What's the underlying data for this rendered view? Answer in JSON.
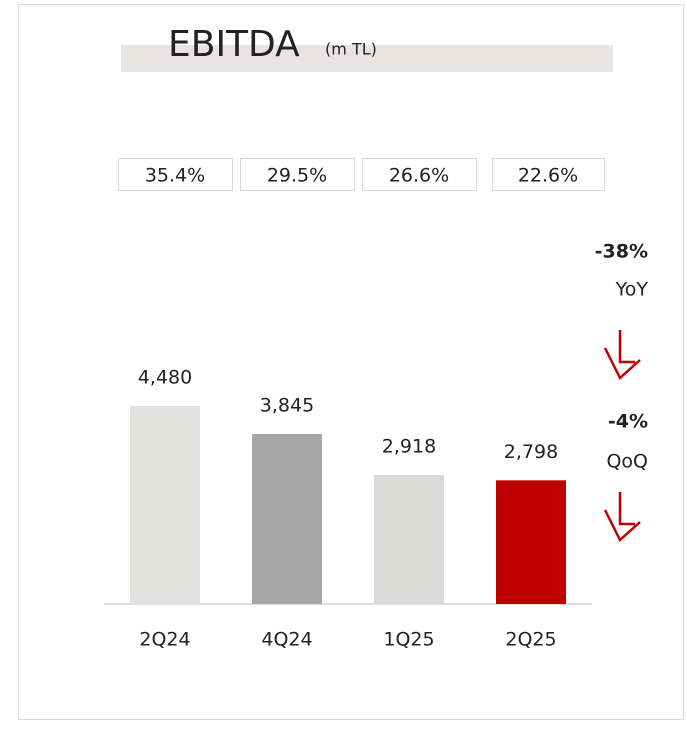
{
  "chart_data": {
    "type": "bar",
    "title": "EBITDA",
    "subtitle": "(m TL)",
    "categories": [
      "2Q24",
      "4Q24",
      "1Q25",
      "2Q25"
    ],
    "values": [
      4480,
      3845,
      2918,
      2798
    ],
    "value_labels": [
      "4,480",
      "3,845",
      "2,918",
      "2,798"
    ],
    "colors": [
      "#e2e2e0",
      "#a6a6a6",
      "#d9d9d7",
      "#c00000"
    ],
    "ylim": [
      0,
      5000
    ],
    "annotations": [
      "35.4%",
      "29.5%",
      "26.6%",
      "22.6%"
    ],
    "changes": [
      {
        "value": "-38%",
        "label": "YoY"
      },
      {
        "value": "-4%",
        "label": "QoQ"
      }
    ]
  }
}
